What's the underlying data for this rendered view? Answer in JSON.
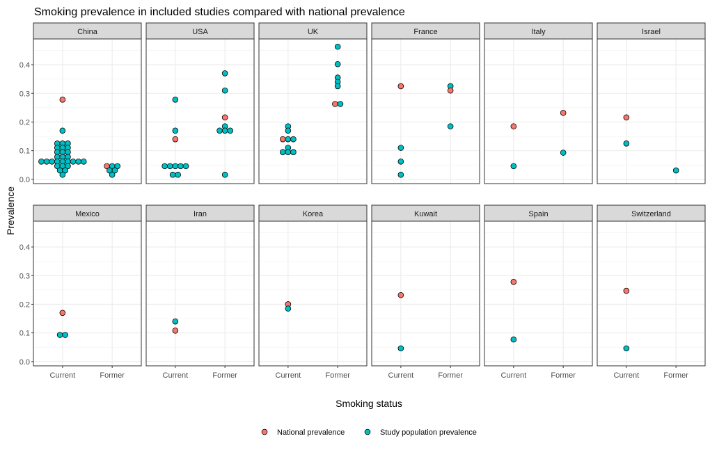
{
  "chart_data": {
    "type": "scatter",
    "title": "Smoking prevalence in included studies compared with national prevalence",
    "xlabel": "Smoking status",
    "ylabel": "Prevalence",
    "x_categories": [
      "Current",
      "Former"
    ],
    "yticks": [
      "0.0",
      "0.1",
      "0.2",
      "0.3",
      "0.4"
    ],
    "ylim": [
      -0.015,
      0.49
    ],
    "grid": true,
    "legend_position": "bottom",
    "series": [
      {
        "name": "National prevalence",
        "color": "#F8766D"
      },
      {
        "name": "Study population prevalence",
        "color": "#00BFC4"
      }
    ],
    "panels": [
      {
        "name": "China",
        "points": [
          {
            "x": "Current",
            "y": 0.278,
            "series": "National prevalence"
          },
          {
            "x": "Current",
            "y": 0.17,
            "series": "Study population prevalence"
          },
          {
            "x": "Current",
            "y": 0.125,
            "series": "Study population prevalence"
          },
          {
            "x": "Current",
            "y": 0.125,
            "series": "Study population prevalence"
          },
          {
            "x": "Current",
            "y": 0.125,
            "series": "Study population prevalence"
          },
          {
            "x": "Current",
            "y": 0.11,
            "series": "Study population prevalence"
          },
          {
            "x": "Current",
            "y": 0.11,
            "series": "Study population prevalence"
          },
          {
            "x": "Current",
            "y": 0.11,
            "series": "Study population prevalence"
          },
          {
            "x": "Current",
            "y": 0.095,
            "series": "Study population prevalence"
          },
          {
            "x": "Current",
            "y": 0.095,
            "series": "Study population prevalence"
          },
          {
            "x": "Current",
            "y": 0.095,
            "series": "Study population prevalence"
          },
          {
            "x": "Current",
            "y": 0.078,
            "series": "Study population prevalence"
          },
          {
            "x": "Current",
            "y": 0.078,
            "series": "Study population prevalence"
          },
          {
            "x": "Current",
            "y": 0.078,
            "series": "Study population prevalence"
          },
          {
            "x": "Current",
            "y": 0.062,
            "series": "Study population prevalence"
          },
          {
            "x": "Current",
            "y": 0.062,
            "series": "Study population prevalence"
          },
          {
            "x": "Current",
            "y": 0.062,
            "series": "Study population prevalence"
          },
          {
            "x": "Current",
            "y": 0.062,
            "series": "Study population prevalence"
          },
          {
            "x": "Current",
            "y": 0.062,
            "series": "Study population prevalence"
          },
          {
            "x": "Current",
            "y": 0.062,
            "series": "Study population prevalence"
          },
          {
            "x": "Current",
            "y": 0.062,
            "series": "Study population prevalence"
          },
          {
            "x": "Current",
            "y": 0.062,
            "series": "Study population prevalence"
          },
          {
            "x": "Current",
            "y": 0.062,
            "series": "Study population prevalence"
          },
          {
            "x": "Current",
            "y": 0.046,
            "series": "Study population prevalence"
          },
          {
            "x": "Current",
            "y": 0.046,
            "series": "Study population prevalence"
          },
          {
            "x": "Current",
            "y": 0.046,
            "series": "Study population prevalence"
          },
          {
            "x": "Current",
            "y": 0.031,
            "series": "Study population prevalence"
          },
          {
            "x": "Current",
            "y": 0.031,
            "series": "Study population prevalence"
          },
          {
            "x": "Current",
            "y": 0.016,
            "series": "Study population prevalence"
          },
          {
            "x": "Former",
            "y": 0.046,
            "series": "National prevalence"
          },
          {
            "x": "Former",
            "y": 0.046,
            "series": "Study population prevalence"
          },
          {
            "x": "Former",
            "y": 0.046,
            "series": "Study population prevalence"
          },
          {
            "x": "Former",
            "y": 0.031,
            "series": "Study population prevalence"
          },
          {
            "x": "Former",
            "y": 0.031,
            "series": "Study population prevalence"
          },
          {
            "x": "Former",
            "y": 0.016,
            "series": "Study population prevalence"
          }
        ]
      },
      {
        "name": "USA",
        "points": [
          {
            "x": "Current",
            "y": 0.278,
            "series": "Study population prevalence"
          },
          {
            "x": "Current",
            "y": 0.17,
            "series": "Study population prevalence"
          },
          {
            "x": "Current",
            "y": 0.14,
            "series": "National prevalence"
          },
          {
            "x": "Current",
            "y": 0.046,
            "series": "Study population prevalence"
          },
          {
            "x": "Current",
            "y": 0.046,
            "series": "Study population prevalence"
          },
          {
            "x": "Current",
            "y": 0.046,
            "series": "Study population prevalence"
          },
          {
            "x": "Current",
            "y": 0.046,
            "series": "Study population prevalence"
          },
          {
            "x": "Current",
            "y": 0.046,
            "series": "Study population prevalence"
          },
          {
            "x": "Current",
            "y": 0.016,
            "series": "Study population prevalence"
          },
          {
            "x": "Current",
            "y": 0.016,
            "series": "Study population prevalence"
          },
          {
            "x": "Former",
            "y": 0.37,
            "series": "Study population prevalence"
          },
          {
            "x": "Former",
            "y": 0.31,
            "series": "Study population prevalence"
          },
          {
            "x": "Former",
            "y": 0.216,
            "series": "National prevalence"
          },
          {
            "x": "Former",
            "y": 0.185,
            "series": "Study population prevalence"
          },
          {
            "x": "Former",
            "y": 0.17,
            "series": "Study population prevalence"
          },
          {
            "x": "Former",
            "y": 0.17,
            "series": "Study population prevalence"
          },
          {
            "x": "Former",
            "y": 0.17,
            "series": "Study population prevalence"
          },
          {
            "x": "Former",
            "y": 0.016,
            "series": "Study population prevalence"
          }
        ]
      },
      {
        "name": "UK",
        "points": [
          {
            "x": "Current",
            "y": 0.185,
            "series": "Study population prevalence"
          },
          {
            "x": "Current",
            "y": 0.17,
            "series": "Study population prevalence"
          },
          {
            "x": "Current",
            "y": 0.14,
            "series": "National prevalence"
          },
          {
            "x": "Current",
            "y": 0.14,
            "series": "Study population prevalence"
          },
          {
            "x": "Current",
            "y": 0.14,
            "series": "Study population prevalence"
          },
          {
            "x": "Current",
            "y": 0.11,
            "series": "Study population prevalence"
          },
          {
            "x": "Current",
            "y": 0.095,
            "series": "Study population prevalence"
          },
          {
            "x": "Current",
            "y": 0.095,
            "series": "Study population prevalence"
          },
          {
            "x": "Current",
            "y": 0.095,
            "series": "Study population prevalence"
          },
          {
            "x": "Former",
            "y": 0.463,
            "series": "Study population prevalence"
          },
          {
            "x": "Former",
            "y": 0.402,
            "series": "Study population prevalence"
          },
          {
            "x": "Former",
            "y": 0.355,
            "series": "Study population prevalence"
          },
          {
            "x": "Former",
            "y": 0.34,
            "series": "Study population prevalence"
          },
          {
            "x": "Former",
            "y": 0.325,
            "series": "Study population prevalence"
          },
          {
            "x": "Former",
            "y": 0.263,
            "series": "National prevalence"
          },
          {
            "x": "Former",
            "y": 0.263,
            "series": "Study population prevalence"
          }
        ]
      },
      {
        "name": "France",
        "points": [
          {
            "x": "Current",
            "y": 0.325,
            "series": "National prevalence"
          },
          {
            "x": "Current",
            "y": 0.11,
            "series": "Study population prevalence"
          },
          {
            "x": "Current",
            "y": 0.062,
            "series": "Study population prevalence"
          },
          {
            "x": "Current",
            "y": 0.016,
            "series": "Study population prevalence"
          },
          {
            "x": "Former",
            "y": 0.325,
            "series": "Study population prevalence"
          },
          {
            "x": "Former",
            "y": 0.31,
            "series": "National prevalence"
          },
          {
            "x": "Former",
            "y": 0.185,
            "series": "Study population prevalence"
          }
        ]
      },
      {
        "name": "Italy",
        "points": [
          {
            "x": "Current",
            "y": 0.185,
            "series": "National prevalence"
          },
          {
            "x": "Current",
            "y": 0.046,
            "series": "Study population prevalence"
          },
          {
            "x": "Former",
            "y": 0.232,
            "series": "National prevalence"
          },
          {
            "x": "Former",
            "y": 0.093,
            "series": "Study population prevalence"
          }
        ]
      },
      {
        "name": "Israel",
        "points": [
          {
            "x": "Current",
            "y": 0.216,
            "series": "National prevalence"
          },
          {
            "x": "Current",
            "y": 0.125,
            "series": "Study population prevalence"
          },
          {
            "x": "Former",
            "y": 0.031,
            "series": "Study population prevalence"
          }
        ]
      },
      {
        "name": "Mexico",
        "points": [
          {
            "x": "Current",
            "y": 0.17,
            "series": "National prevalence"
          },
          {
            "x": "Current",
            "y": 0.093,
            "series": "Study population prevalence"
          },
          {
            "x": "Current",
            "y": 0.093,
            "series": "Study population prevalence"
          }
        ]
      },
      {
        "name": "Iran",
        "points": [
          {
            "x": "Current",
            "y": 0.14,
            "series": "Study population prevalence"
          },
          {
            "x": "Current",
            "y": 0.108,
            "series": "National prevalence"
          }
        ]
      },
      {
        "name": "Korea",
        "points": [
          {
            "x": "Current",
            "y": 0.2,
            "series": "National prevalence"
          },
          {
            "x": "Current",
            "y": 0.185,
            "series": "Study population prevalence"
          }
        ]
      },
      {
        "name": "Kuwait",
        "points": [
          {
            "x": "Current",
            "y": 0.232,
            "series": "National prevalence"
          },
          {
            "x": "Current",
            "y": 0.046,
            "series": "Study population prevalence"
          }
        ]
      },
      {
        "name": "Spain",
        "points": [
          {
            "x": "Current",
            "y": 0.278,
            "series": "National prevalence"
          },
          {
            "x": "Current",
            "y": 0.077,
            "series": "Study population prevalence"
          }
        ]
      },
      {
        "name": "Switzerland",
        "points": [
          {
            "x": "Current",
            "y": 0.247,
            "series": "National prevalence"
          },
          {
            "x": "Current",
            "y": 0.046,
            "series": "Study population prevalence"
          }
        ]
      }
    ]
  }
}
